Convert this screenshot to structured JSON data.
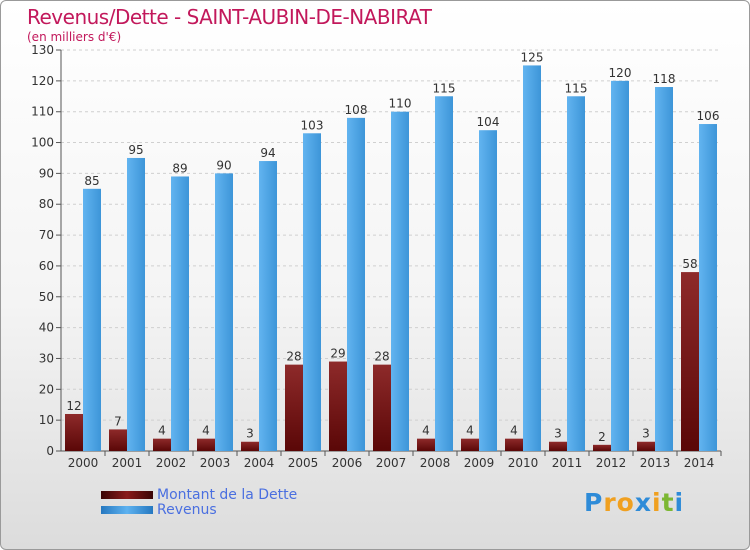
{
  "title": "Revenus/Dette - SAINT-AUBIN-DE-NABIRAT",
  "subtitle": "(en milliers d'€)",
  "colors": {
    "title": "#c2185b",
    "dette": "#6b0d0d",
    "revenus": "#3d9be0",
    "legend_text": "#4a6fe0"
  },
  "chart_data": {
    "type": "bar",
    "categories": [
      "2000",
      "2001",
      "2002",
      "2003",
      "2004",
      "2005",
      "2006",
      "2007",
      "2008",
      "2009",
      "2010",
      "2011",
      "2012",
      "2013",
      "2014"
    ],
    "series": [
      {
        "name": "Montant de la Dette",
        "values": [
          12,
          7,
          4,
          4,
          3,
          28,
          29,
          28,
          4,
          4,
          4,
          3,
          2,
          3,
          58
        ]
      },
      {
        "name": "Revenus",
        "values": [
          85,
          95,
          89,
          90,
          94,
          103,
          108,
          110,
          115,
          104,
          125,
          115,
          120,
          118,
          106
        ]
      }
    ],
    "ylim": [
      0,
      130
    ],
    "yticks": [
      0,
      10,
      20,
      30,
      40,
      50,
      60,
      70,
      80,
      90,
      100,
      110,
      120,
      130
    ],
    "grid": true,
    "legend_position": "bottom-left"
  },
  "legend": [
    {
      "label": "Montant de la Dette"
    },
    {
      "label": "Revenus"
    }
  ],
  "logo": {
    "letters": [
      "P",
      "r",
      "o",
      "x",
      "i",
      "t",
      "i"
    ],
    "colors": [
      "#2e8bd8",
      "#f0a020",
      "#f0a020",
      "#2e8bd8",
      "#f0a020",
      "#7cb733",
      "#2e8bd8"
    ]
  }
}
